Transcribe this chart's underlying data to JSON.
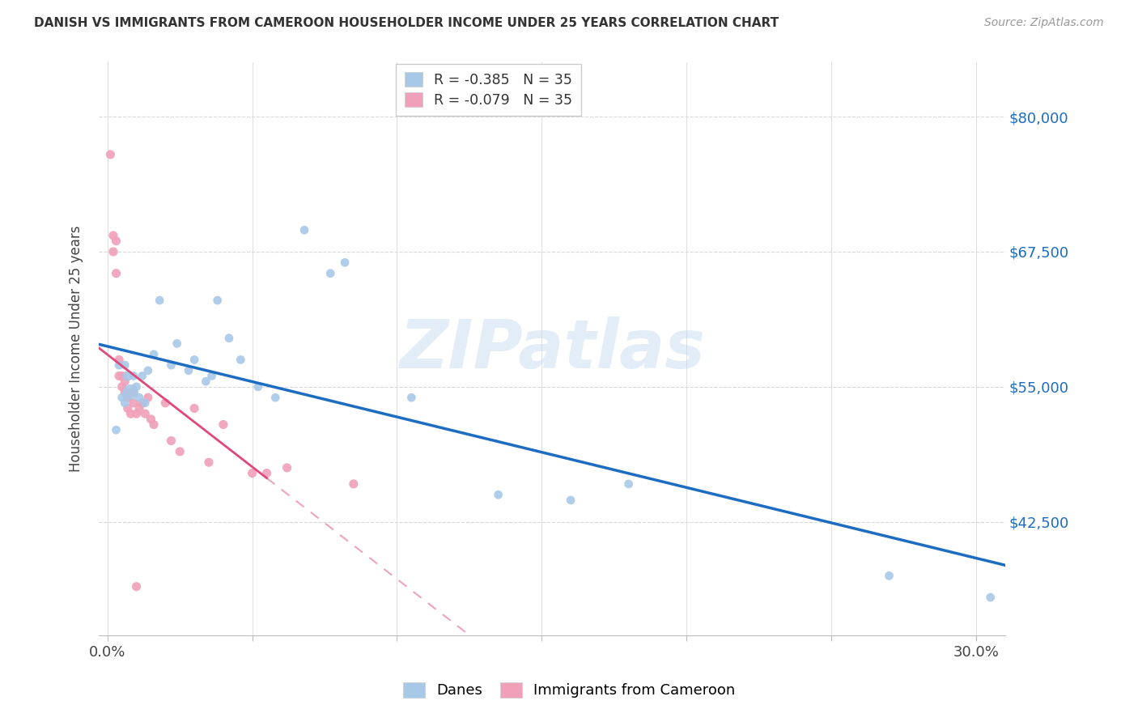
{
  "title": "DANISH VS IMMIGRANTS FROM CAMEROON HOUSEHOLDER INCOME UNDER 25 YEARS CORRELATION CHART",
  "source": "Source: ZipAtlas.com",
  "ylabel": "Householder Income Under 25 years",
  "ytick_values": [
    42500,
    55000,
    67500,
    80000
  ],
  "ylim": [
    32000,
    85000
  ],
  "xlim": [
    -0.003,
    0.31
  ],
  "legend_blue_r": "-0.385",
  "legend_blue_n": "35",
  "legend_pink_r": "-0.079",
  "legend_pink_n": "35",
  "legend_label_blue": "Danes",
  "legend_label_pink": "Immigrants from Cameroon",
  "watermark": "ZIPatlas",
  "blue_color": "#a8c8e8",
  "blue_line_color": "#1c6cc2",
  "pink_color": "#f0a0b8",
  "pink_line_color": "#e04878",
  "background_color": "#ffffff",
  "grid_color": "#d8d8d8",
  "blue_scatter_x": [
    0.003,
    0.004,
    0.005,
    0.006,
    0.006,
    0.007,
    0.008,
    0.009,
    0.01,
    0.011,
    0.012,
    0.013,
    0.014,
    0.016,
    0.018,
    0.022,
    0.024,
    0.028,
    0.03,
    0.034,
    0.036,
    0.038,
    0.042,
    0.046,
    0.052,
    0.058,
    0.068,
    0.077,
    0.082,
    0.105,
    0.135,
    0.16,
    0.18,
    0.27,
    0.305
  ],
  "blue_scatter_y": [
    51000,
    57000,
    54000,
    57000,
    53500,
    56000,
    54500,
    56000,
    55000,
    54000,
    56000,
    53500,
    56500,
    58000,
    63000,
    57000,
    59000,
    56500,
    57500,
    55500,
    56000,
    63000,
    59500,
    57500,
    55000,
    54000,
    69500,
    65500,
    66500,
    54000,
    45000,
    44500,
    46000,
    37500,
    35500
  ],
  "blue_scatter_size": [
    60,
    60,
    60,
    60,
    60,
    80,
    190,
    60,
    60,
    60,
    60,
    60,
    60,
    60,
    60,
    60,
    60,
    60,
    60,
    60,
    60,
    60,
    60,
    60,
    60,
    60,
    60,
    60,
    60,
    60,
    60,
    60,
    60,
    60,
    60
  ],
  "pink_scatter_x": [
    0.001,
    0.002,
    0.002,
    0.003,
    0.003,
    0.004,
    0.004,
    0.005,
    0.005,
    0.006,
    0.006,
    0.007,
    0.007,
    0.008,
    0.008,
    0.009,
    0.009,
    0.01,
    0.011,
    0.012,
    0.013,
    0.014,
    0.015,
    0.016,
    0.02,
    0.022,
    0.025,
    0.03,
    0.035,
    0.04,
    0.05,
    0.055,
    0.062,
    0.085,
    0.01
  ],
  "pink_scatter_y": [
    76500,
    69000,
    67500,
    68500,
    65500,
    57500,
    56000,
    56000,
    55000,
    54500,
    55500,
    54000,
    53000,
    54500,
    52500,
    54500,
    53500,
    52500,
    53000,
    53500,
    52500,
    54000,
    52000,
    51500,
    53500,
    50000,
    49000,
    53000,
    48000,
    51500,
    47000,
    47000,
    47500,
    46000,
    36500
  ]
}
